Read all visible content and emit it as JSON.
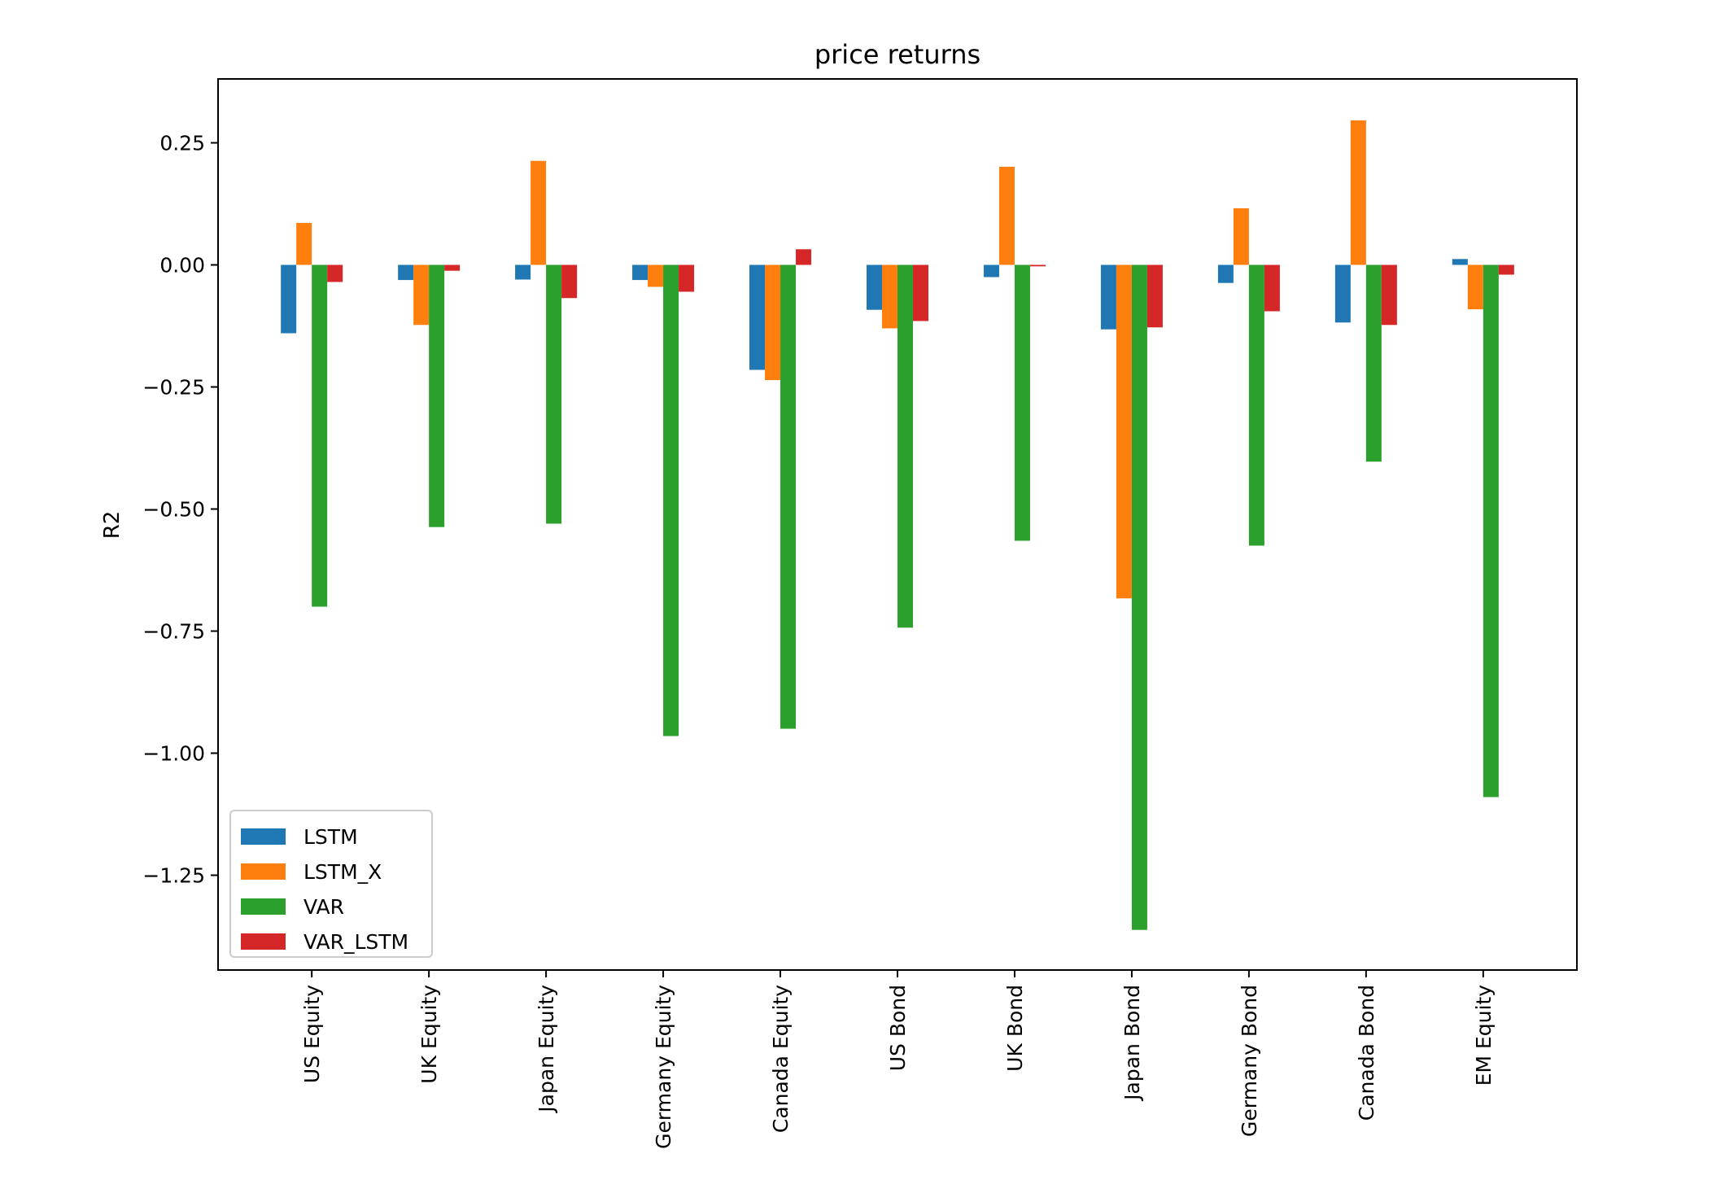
{
  "chart_data": {
    "type": "bar",
    "title": "price returns",
    "xlabel": "",
    "ylabel": "R2",
    "ylim": [
      -1.44,
      0.38
    ],
    "yticks": [
      0.25,
      0.0,
      -0.25,
      -0.5,
      -0.75,
      -1.0,
      -1.25
    ],
    "ytick_labels": [
      "0.25",
      "0.00",
      "−0.25",
      "−0.50",
      "−0.75",
      "−1.00",
      "−1.25"
    ],
    "grid": false,
    "legend_position": "lower-left",
    "categories": [
      "US Equity",
      "UK Equity",
      "Japan Equity",
      "Germany Equity",
      "Canada Equity",
      "US Bond",
      "UK Bond",
      "Japan Bond",
      "Germany Bond",
      "Canada Bond",
      "EM Equity"
    ],
    "series": [
      {
        "name": "LSTM",
        "color": "#1f77b4",
        "values": [
          -0.14,
          -0.031,
          -0.03,
          -0.031,
          -0.215,
          -0.092,
          -0.025,
          -0.132,
          -0.037,
          -0.118,
          0.012
        ]
      },
      {
        "name": "LSTM_X",
        "color": "#ff7f0e",
        "values": [
          0.086,
          -0.123,
          0.213,
          -0.045,
          -0.236,
          -0.13,
          0.201,
          -0.683,
          0.116,
          0.296,
          -0.091
        ]
      },
      {
        "name": "VAR",
        "color": "#2ca02c",
        "values": [
          -0.7,
          -0.537,
          -0.53,
          -0.965,
          -0.95,
          -0.743,
          -0.565,
          -1.362,
          -0.575,
          -0.403,
          -1.09
        ]
      },
      {
        "name": "VAR_LSTM",
        "color": "#d62728",
        "values": [
          -0.035,
          -0.012,
          -0.068,
          -0.055,
          0.032,
          -0.115,
          -0.003,
          -0.128,
          -0.095,
          -0.123,
          -0.02
        ]
      }
    ]
  }
}
